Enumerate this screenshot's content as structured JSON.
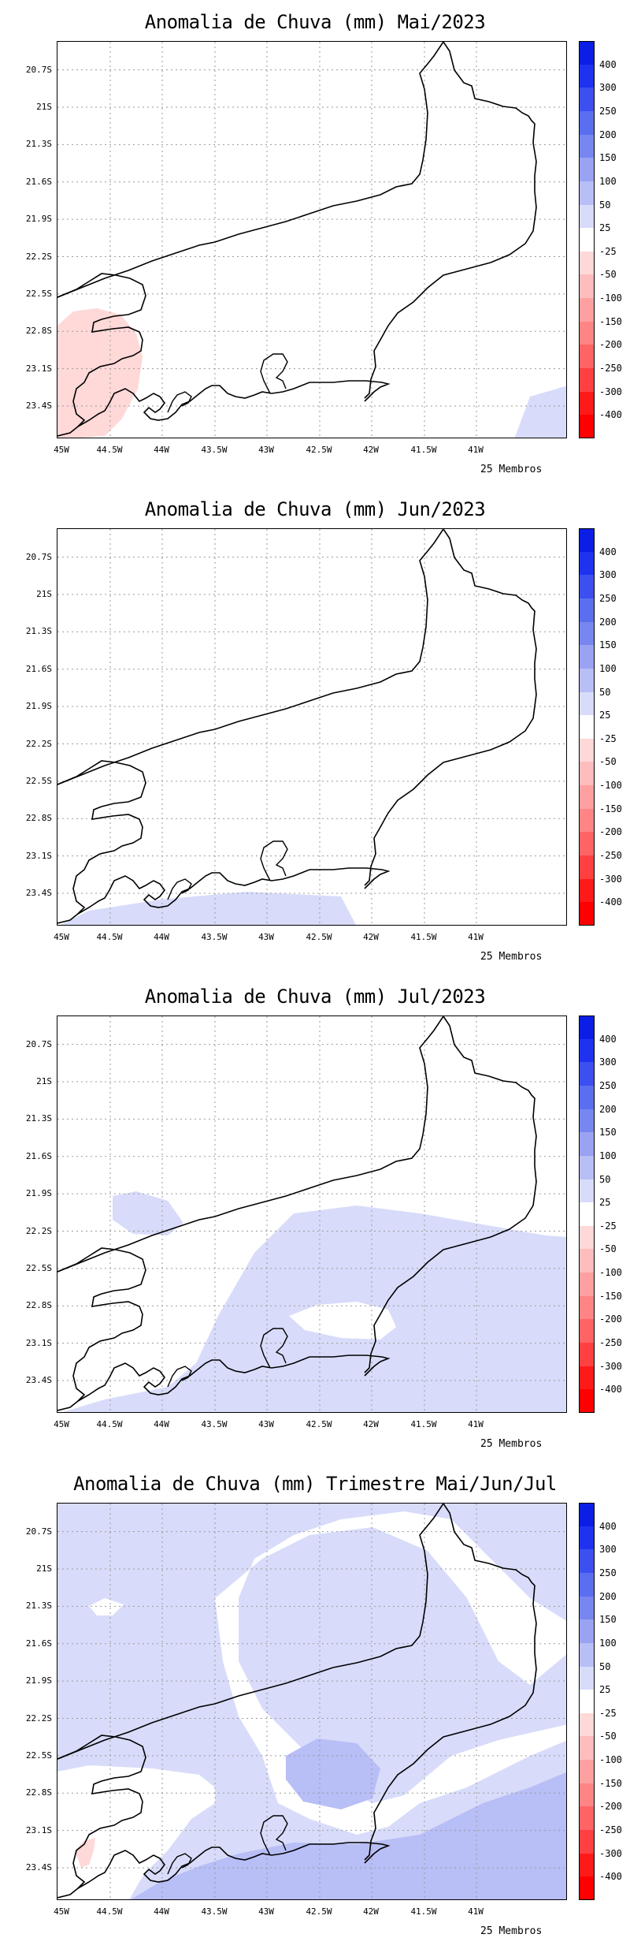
{
  "panels": [
    {
      "title": "Anomalia de Chuva (mm) Mai/2023",
      "members_label": "25 Membros"
    },
    {
      "title": "Anomalia de Chuva (mm) Jun/2023",
      "members_label": "25 Membros"
    },
    {
      "title": "Anomalia de Chuva (mm) Jul/2023",
      "members_label": "25 Membros"
    },
    {
      "title": "Anomalia de Chuva (mm) Trimestre Mai/Jun/Jul",
      "members_label": "25 Membros"
    }
  ],
  "axes": {
    "lat_labels": [
      "20.7S",
      "21S",
      "21.3S",
      "21.6S",
      "21.9S",
      "22.2S",
      "22.5S",
      "22.8S",
      "23.1S",
      "23.4S"
    ],
    "lon_labels": [
      "45W",
      "44.5W",
      "44W",
      "43.5W",
      "43W",
      "42.5W",
      "42W",
      "41.5W",
      "41W"
    ]
  },
  "legend": {
    "labels": [
      "400",
      "300",
      "250",
      "200",
      "150",
      "100",
      "50",
      "25",
      "-25",
      "-50",
      "-100",
      "-150",
      "-200",
      "-250",
      "-300",
      "-400"
    ],
    "colors": [
      "#0a1ee6",
      "#1e32f0",
      "#3c50f0",
      "#5a6ef0",
      "#7886f0",
      "#9aa2f2",
      "#b8bef6",
      "#d8dcfa",
      "#ffffff",
      "#ffd8d8",
      "#ffbcbc",
      "#ffa0a0",
      "#ff8484",
      "#ff6464",
      "#ff4040",
      "#ff1a1a",
      "#ff0000"
    ]
  }
}
